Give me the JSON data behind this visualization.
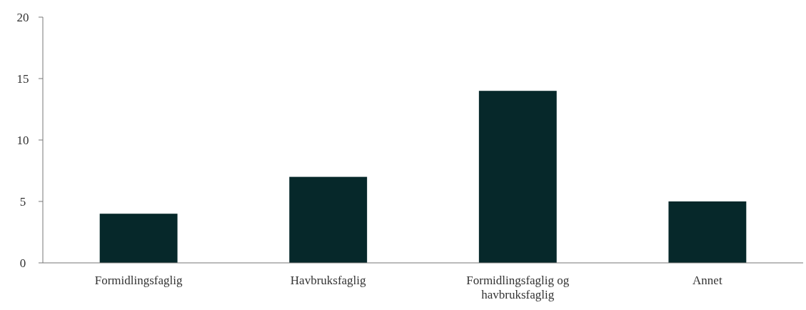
{
  "chart_data": {
    "type": "bar",
    "categories": [
      "Formidlingsfaglig",
      "Havbruksfaglig",
      "Formidlingsfaglig og havbruksfaglig",
      "Annet"
    ],
    "values": [
      4,
      7,
      14,
      5
    ],
    "color": "#06282a",
    "ylim": [
      0,
      20
    ],
    "yticks": [
      0,
      5,
      10,
      15,
      20
    ],
    "grid": false
  }
}
